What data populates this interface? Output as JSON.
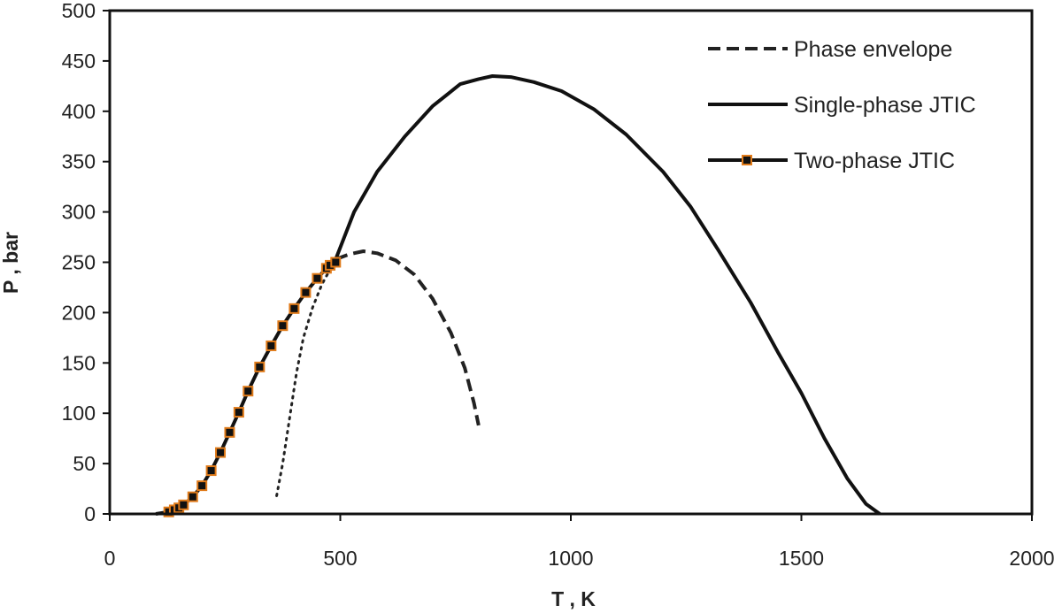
{
  "chart_data": {
    "type": "line",
    "title": "",
    "xlabel": "T , K",
    "ylabel": "P , bar",
    "xlim": [
      0,
      2000
    ],
    "ylim": [
      0,
      500
    ],
    "xticks": [
      "0",
      "500",
      "1000",
      "1500",
      "2000"
    ],
    "yticks": [
      "0",
      "50",
      "100",
      "150",
      "200",
      "250",
      "300",
      "350",
      "400",
      "450",
      "500"
    ],
    "grid": false,
    "legend_position": "top-right",
    "series": [
      {
        "name": "Phase envelope",
        "style": "dashed",
        "color": "#222222",
        "points": [
          [
            490,
            253
          ],
          [
            520,
            258
          ],
          [
            550,
            261
          ],
          [
            580,
            259
          ],
          [
            620,
            252
          ],
          [
            660,
            238
          ],
          [
            700,
            214
          ],
          [
            740,
            180
          ],
          [
            770,
            145
          ],
          [
            790,
            110
          ],
          [
            800,
            88
          ]
        ]
      },
      {
        "name": "",
        "style": "dotted",
        "color": "#222222",
        "points": [
          [
            362,
            18
          ],
          [
            375,
            50
          ],
          [
            390,
            95
          ],
          [
            405,
            140
          ],
          [
            420,
            175
          ],
          [
            440,
            205
          ],
          [
            460,
            228
          ],
          [
            490,
            253
          ]
        ]
      },
      {
        "name": "Single-phase JTIC",
        "style": "solid",
        "color": "#111111",
        "points": [
          [
            490,
            253
          ],
          [
            530,
            300
          ],
          [
            580,
            340
          ],
          [
            640,
            375
          ],
          [
            700,
            405
          ],
          [
            760,
            427
          ],
          [
            800,
            432
          ],
          [
            830,
            435
          ],
          [
            870,
            434
          ],
          [
            920,
            429
          ],
          [
            980,
            420
          ],
          [
            1050,
            402
          ],
          [
            1120,
            377
          ],
          [
            1200,
            340
          ],
          [
            1260,
            305
          ],
          [
            1320,
            262
          ],
          [
            1390,
            210
          ],
          [
            1450,
            160
          ],
          [
            1500,
            120
          ],
          [
            1550,
            75
          ],
          [
            1600,
            35
          ],
          [
            1640,
            10
          ],
          [
            1670,
            0
          ]
        ]
      },
      {
        "name": "Two-phase JTIC",
        "style": "solid-markers",
        "color": "#111111",
        "marker_color": "#e07b1a",
        "points": [
          [
            100,
            0
          ],
          [
            128,
            2
          ],
          [
            140,
            4
          ],
          [
            150,
            6
          ],
          [
            160,
            9
          ],
          [
            180,
            17
          ],
          [
            200,
            28
          ],
          [
            220,
            43
          ],
          [
            240,
            61
          ],
          [
            260,
            81
          ],
          [
            280,
            101
          ],
          [
            300,
            122
          ],
          [
            325,
            146
          ],
          [
            350,
            167
          ],
          [
            375,
            187
          ],
          [
            400,
            204
          ],
          [
            425,
            220
          ],
          [
            450,
            234
          ],
          [
            470,
            244
          ],
          [
            478,
            247
          ],
          [
            490,
            250
          ]
        ]
      }
    ]
  }
}
